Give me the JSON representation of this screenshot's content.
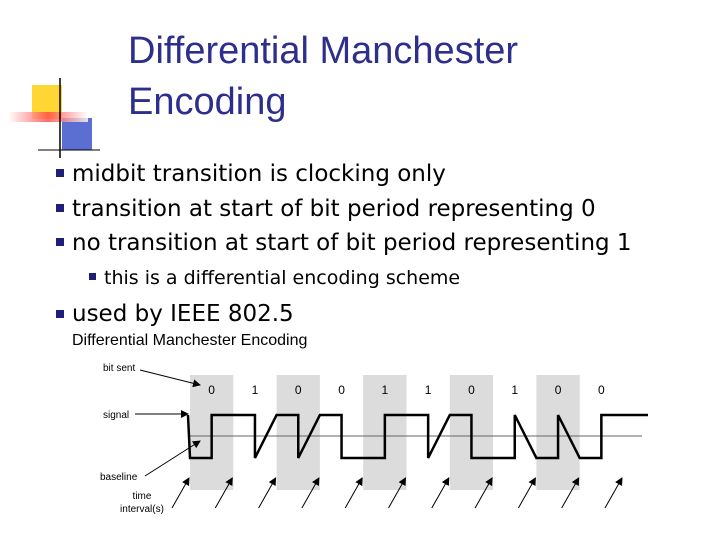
{
  "header": {
    "title_lines": [
      "Differential Manchester",
      "Encoding"
    ]
  },
  "bullets": [
    "midbit transition is clocking only",
    "transition at start of bit period representing 0",
    "no transition at start of bit period representing 1"
  ],
  "sub_bullet": "this is a differential encoding scheme",
  "last_bullet": "used by IEEE 802.5",
  "figure": {
    "caption": "Differential Manchester Encoding",
    "labels": {
      "bit_sent": "bit sent",
      "signal": "signal",
      "baseline": "baseline",
      "time": [
        "time",
        "interval(s)"
      ]
    },
    "bits": [
      "0",
      "1",
      "0",
      "0",
      "1",
      "1",
      "0",
      "1",
      "0",
      "0"
    ]
  }
}
